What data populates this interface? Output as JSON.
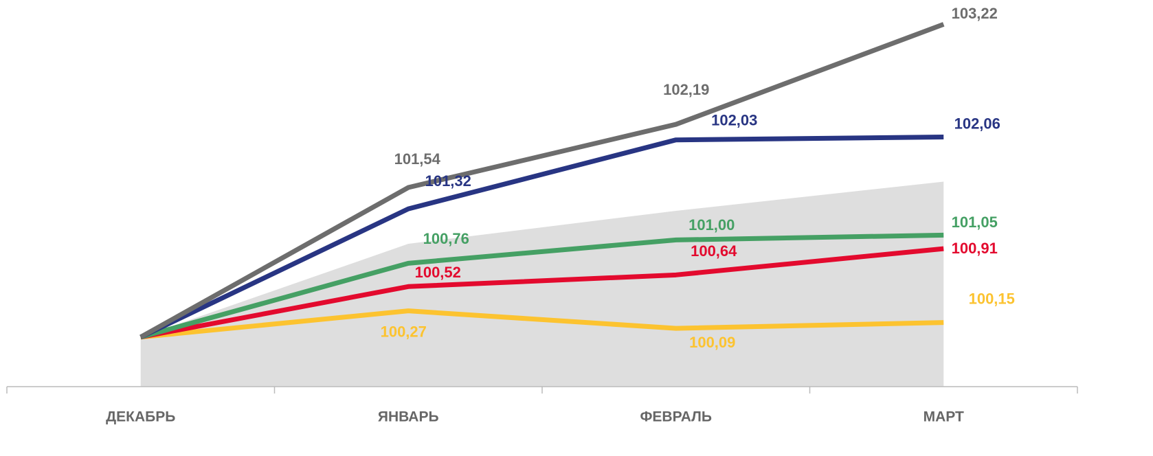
{
  "chart_data": {
    "type": "line",
    "categories": [
      "ДЕКАБРЬ",
      "ЯНВАРЬ",
      "ФЕВРАЛЬ",
      "МАРТ"
    ],
    "ylim": [
      99.49,
      103.47
    ],
    "band": {
      "color": "#dedede",
      "values": [
        100,
        100.96,
        101.3,
        101.6
      ]
    },
    "series": [
      {
        "color": "#6d6d6d",
        "values": [
          100,
          101.54,
          102.19,
          103.22
        ],
        "value_labels": [
          null,
          "101,54",
          "102,19",
          "103,22"
        ]
      },
      {
        "color": "#283583",
        "values": [
          100,
          101.32,
          102.03,
          102.06
        ],
        "value_labels": [
          null,
          "101,32",
          "102,03",
          "102,06"
        ]
      },
      {
        "color": "#45a064",
        "values": [
          100,
          100.76,
          101.0,
          101.05
        ],
        "value_labels": [
          null,
          "100,76",
          "101,00",
          "101,05"
        ]
      },
      {
        "color": "#e30a2e",
        "values": [
          100,
          100.52,
          100.64,
          100.91
        ],
        "value_labels": [
          null,
          "100,52",
          "100,64",
          "100,91"
        ]
      },
      {
        "color": "#fcc330",
        "values": [
          100,
          100.27,
          100.09,
          100.15
        ],
        "value_labels": [
          null,
          "100,27",
          "100,09",
          "100,15"
        ]
      }
    ]
  }
}
